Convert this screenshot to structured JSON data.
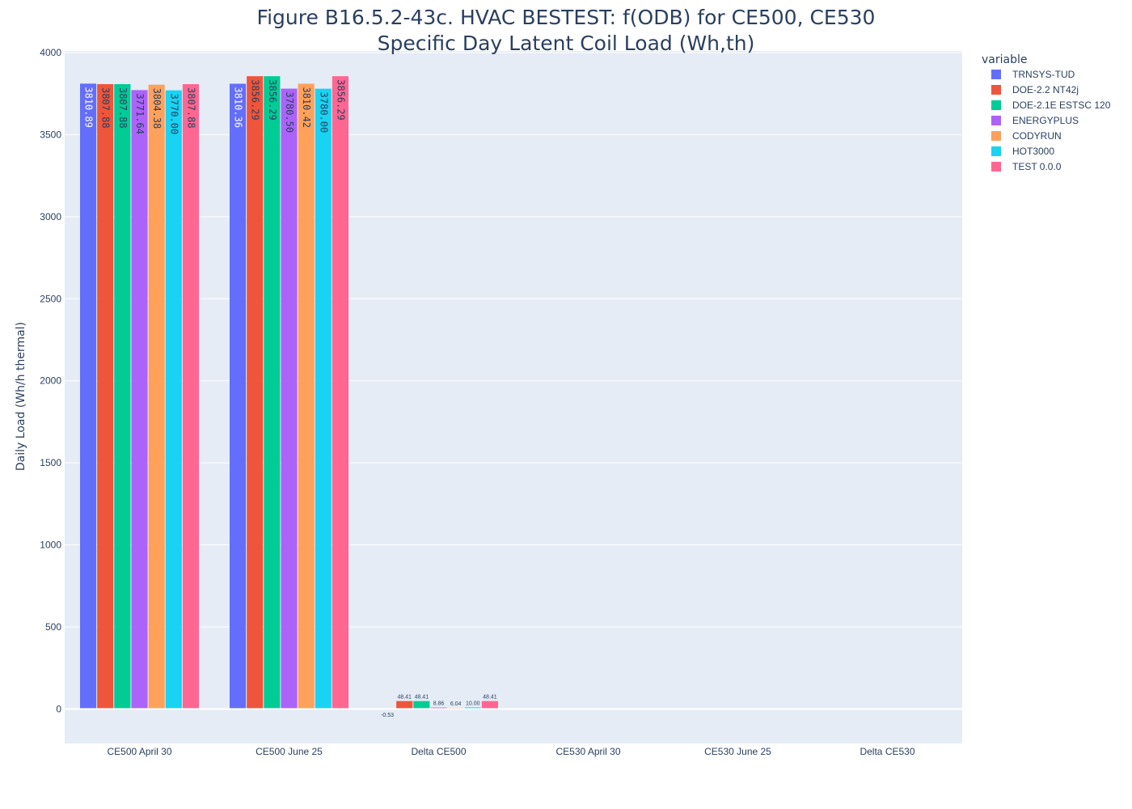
{
  "chart_data": {
    "type": "bar",
    "title_lines": [
      "Figure B16.5.2-43c. HVAC BESTEST: f(ODB) for CE500, CE530",
      "Specific Day Latent Coil Load (Wh,th)"
    ],
    "xlabel": "",
    "ylabel": "Daily Load (Wh/h thermal)",
    "ylim": [
      -210,
      4010
    ],
    "yticks": [
      0,
      500,
      1000,
      1500,
      2000,
      2500,
      3000,
      3500,
      4000
    ],
    "grid": true,
    "legend_title": "variable",
    "legend_position": "right",
    "categories": [
      "CE500 April 30",
      "CE500 June 25",
      "Delta CE500",
      "CE530 April 30",
      "CE530 June 25",
      "Delta CE530"
    ],
    "series": [
      {
        "name": "TRNSYS-TUD",
        "color": "#636efa",
        "label_color": "#ffffff",
        "values": [
          3810.89,
          3810.36,
          -0.53,
          null,
          null,
          null
        ],
        "labels": [
          "3810.89",
          "3810.36",
          "-0.53",
          "",
          "",
          ""
        ]
      },
      {
        "name": "DOE-2.2 NT42j",
        "color": "#EF553B",
        "label_color": "#2a3f5f",
        "values": [
          3807.88,
          3856.29,
          48.41,
          null,
          null,
          null
        ],
        "labels": [
          "3807.88",
          "3856.29",
          "48.41",
          "",
          "",
          ""
        ]
      },
      {
        "name": "DOE-2.1E ESTSC 120",
        "color": "#00cc96",
        "label_color": "#2a3f5f",
        "values": [
          3807.88,
          3856.29,
          48.41,
          null,
          null,
          null
        ],
        "labels": [
          "3807.88",
          "3856.29",
          "48.41",
          "",
          "",
          ""
        ]
      },
      {
        "name": "ENERGYPLUS",
        "color": "#ab63fa",
        "label_color": "#2a3f5f",
        "values": [
          3771.64,
          3780.5,
          8.86,
          null,
          null,
          null
        ],
        "labels": [
          "3771.64",
          "3780.50",
          "8.86",
          "",
          "",
          ""
        ]
      },
      {
        "name": "CODYRUN",
        "color": "#FFA15A",
        "label_color": "#2a3f5f",
        "values": [
          3804.38,
          3810.42,
          6.04,
          null,
          null,
          null
        ],
        "labels": [
          "3804.38",
          "3810.42",
          "6.04",
          "",
          "",
          ""
        ]
      },
      {
        "name": "HOT3000",
        "color": "#19d3f3",
        "label_color": "#2a3f5f",
        "values": [
          3770.0,
          3780.0,
          10.0,
          null,
          null,
          null
        ],
        "labels": [
          "3770.00",
          "3780.00",
          "10.00",
          "",
          "",
          ""
        ]
      },
      {
        "name": "TEST 0.0.0",
        "color": "#FF6692",
        "label_color": "#2a3f5f",
        "values": [
          3807.88,
          3856.29,
          48.41,
          null,
          null,
          null
        ],
        "labels": [
          "3807.88",
          "3856.29",
          "48.41",
          "",
          "",
          ""
        ]
      }
    ]
  }
}
